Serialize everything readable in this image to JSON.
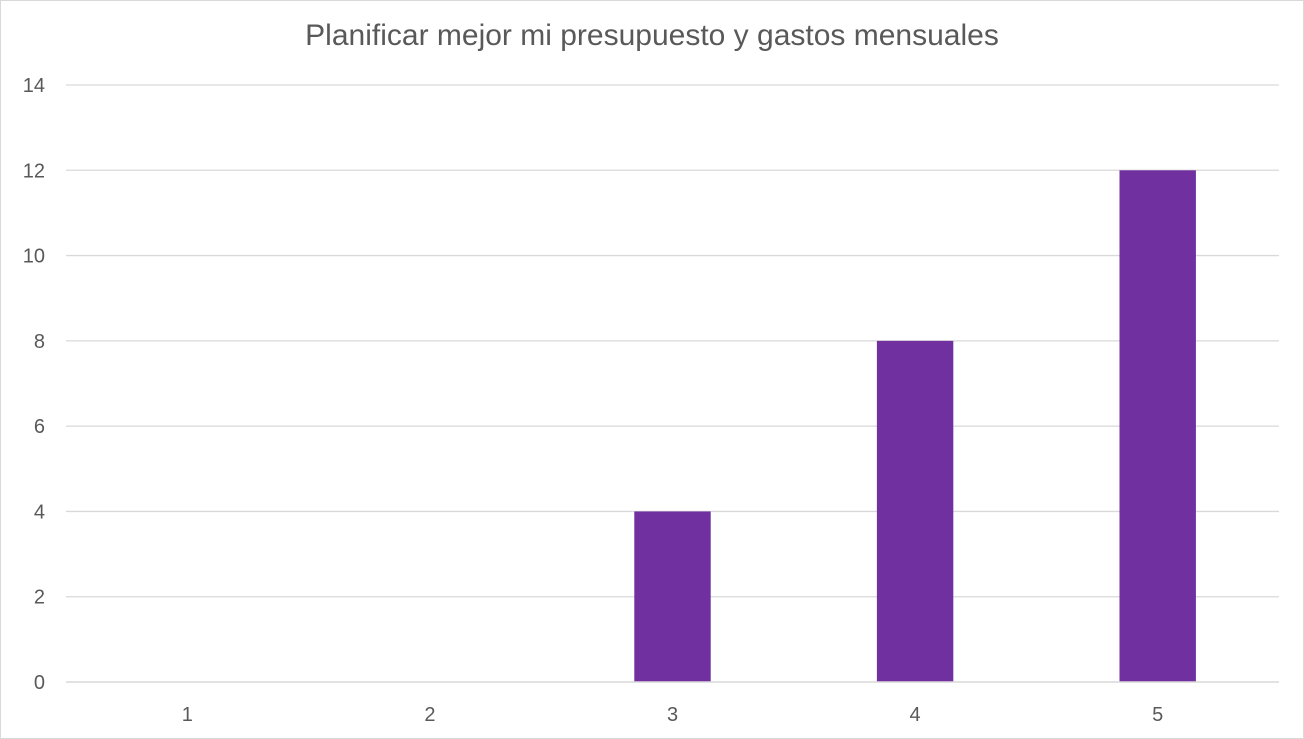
{
  "chart_data": {
    "type": "bar",
    "title": "Planificar mejor mi presupuesto y gastos mensuales",
    "categories": [
      "1",
      "2",
      "3",
      "4",
      "5"
    ],
    "values": [
      0,
      0,
      4,
      8,
      12
    ],
    "xlabel": "",
    "ylabel": "",
    "ylim": [
      0,
      14
    ],
    "yticks": [
      0,
      2,
      4,
      6,
      8,
      10,
      12,
      14
    ],
    "grid": true,
    "legend": "none",
    "colors": {
      "bar": "#7030a0",
      "grid": "#d9d9d9",
      "text": "#595959"
    }
  }
}
